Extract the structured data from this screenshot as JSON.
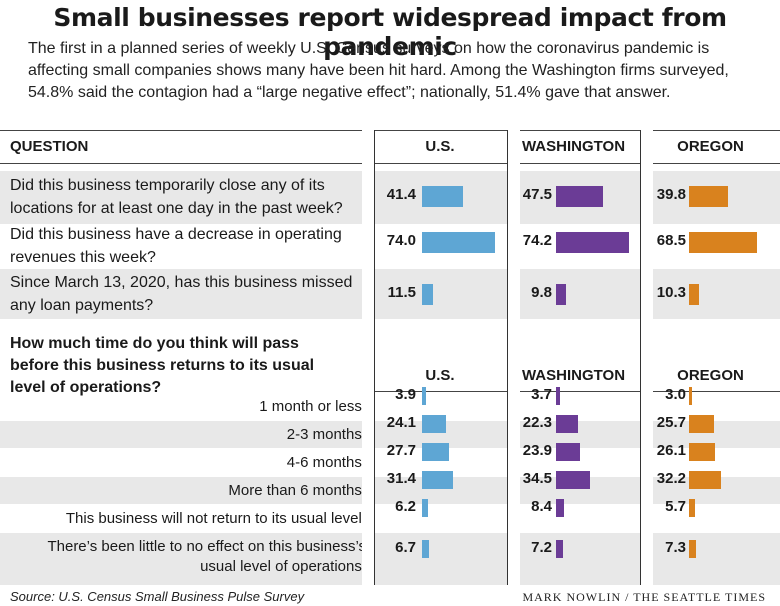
{
  "title": "Small businesses report widespread impact from pandemic",
  "intro": "The first in a planned series of weekly U.S. Census surveys on how the coronavirus pandemic is affecting small companies shows many have been hit hard. Among the Washington firms surveyed, 54.8% said the contagion had a “large negative effect”; nationally, 51.4% gave that answer.",
  "header": {
    "question": "QUESTION",
    "us": "U.S.",
    "washington": "WASHINGTON",
    "oregon": "OREGON"
  },
  "section2_question": "How much time do you think will pass before this business returns to its usual level of operations?",
  "colors": {
    "us": "#5ea6d4",
    "washington": "#6b3c96",
    "oregon": "#d9821e",
    "band": "#e8e8e8"
  },
  "chart_data": [
    {
      "type": "bar",
      "categories": [
        "Did this business temporarily close any of its locations for at least one day in the past week?",
        "Did this business have a decrease in operating revenues this week?",
        "Since March 13, 2020, has this business missed any loan payments?"
      ],
      "series": [
        {
          "name": "U.S.",
          "values": [
            41.4,
            74.0,
            11.5
          ],
          "labels": [
            "41.4",
            "74.0",
            "11.5"
          ]
        },
        {
          "name": "WASHINGTON",
          "values": [
            47.5,
            74.2,
            9.8
          ],
          "labels": [
            "47.5",
            "74.2",
            "9.8"
          ]
        },
        {
          "name": "OREGON",
          "values": [
            39.8,
            68.5,
            10.3
          ],
          "labels": [
            "39.8",
            "68.5",
            "10.3"
          ]
        }
      ]
    },
    {
      "type": "bar",
      "title": "How much time do you think will pass before this business returns to its usual level of operations?",
      "categories": [
        "1 month or less:",
        "2-3 months:",
        "4-6 months:",
        "More than 6 months:",
        "This business will not return to its usual level:",
        "There’s been little to no effect on this business’s usual level of operations:"
      ],
      "series": [
        {
          "name": "U.S.",
          "values": [
            3.9,
            24.1,
            27.7,
            31.4,
            6.2,
            6.7
          ],
          "labels": [
            "3.9",
            "24.1",
            "27.7",
            "31.4",
            "6.2",
            "6.7"
          ]
        },
        {
          "name": "WASHINGTON",
          "values": [
            3.7,
            22.3,
            23.9,
            34.5,
            8.4,
            7.2
          ],
          "labels": [
            "3.7",
            "22.3",
            "23.9",
            "34.5",
            "8.4",
            "7.2"
          ]
        },
        {
          "name": "OREGON",
          "values": [
            3.0,
            25.7,
            26.1,
            32.2,
            5.7,
            7.3
          ],
          "labels": [
            "3.0",
            "25.7",
            "26.1",
            "32.2",
            "5.7",
            "7.3"
          ]
        }
      ]
    }
  ],
  "source": "Source: U.S. Census Small Business Pulse Survey",
  "credit": "MARK NOWLIN / THE SEATTLE TIMES"
}
